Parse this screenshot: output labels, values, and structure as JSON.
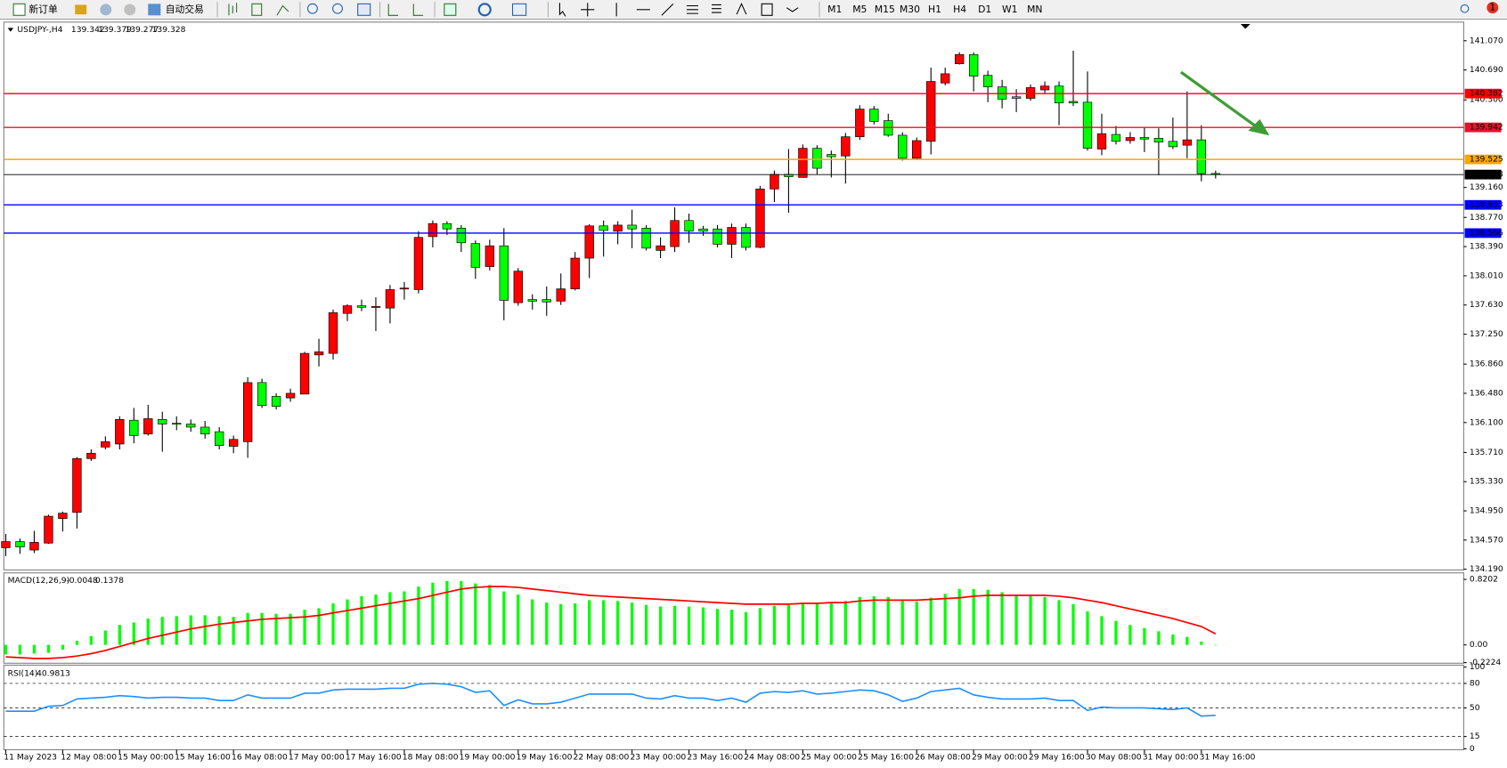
{
  "toolbar": {
    "buttons": [
      "新订单",
      "自动交易"
    ],
    "timeframes": [
      "M1",
      "M5",
      "M15",
      "M30",
      "H1",
      "H4",
      "D1",
      "W1",
      "MN"
    ],
    "notifications": 1
  },
  "chart_data": [
    {
      "type": "candlestick",
      "symbol": "USDJPY-,H4",
      "categories": [
        "11 May 2023",
        null,
        null,
        null,
        "12 May 08:00",
        null,
        null,
        null,
        "15 May 00:00",
        null,
        null,
        null,
        "15 May 16:00",
        null,
        null,
        null,
        "16 May 08:00",
        null,
        null,
        null,
        "17 May 00:00",
        null,
        null,
        null,
        "17 May 16:00",
        null,
        null,
        null,
        "18 May 08:00",
        null,
        null,
        null,
        "19 May 00:00",
        null,
        null,
        null,
        "19 May 16:00",
        null,
        null,
        null,
        "22 May 08:00",
        null,
        null,
        null,
        "23 May 00:00",
        null,
        null,
        null,
        "23 May 16:00",
        null,
        null,
        null,
        "24 May 08:00",
        null,
        null,
        null,
        "25 May 00:00",
        null,
        null,
        null,
        "25 May 16:00",
        null,
        null,
        null,
        "26 May 08:00",
        null,
        null,
        null,
        "29 May 00:00",
        null,
        null,
        null,
        "29 May 16:00",
        null,
        null,
        null,
        "30 May 08:00",
        null,
        null,
        null,
        "31 May 00:00",
        null,
        null,
        null,
        "31 May 16:00",
        null
      ],
      "open": [
        134.47,
        134.55,
        134.44,
        134.53,
        134.85,
        134.93,
        135.63,
        135.78,
        135.82,
        136.13,
        135.95,
        136.14,
        136.09,
        136.08,
        136.04,
        135.98,
        135.79,
        135.85,
        136.62,
        136.44,
        136.42,
        136.47,
        136.98,
        137.0,
        137.52,
        137.62,
        137.6,
        137.59,
        137.84,
        137.83,
        138.52,
        138.69,
        138.63,
        138.43,
        138.13,
        138.4,
        137.66,
        137.7,
        137.7,
        137.68,
        137.84,
        138.24,
        138.66,
        138.59,
        138.67,
        138.63,
        138.34,
        138.39,
        138.73,
        138.62,
        138.62,
        138.42,
        138.64,
        138.38,
        139.14,
        139.33,
        139.29,
        139.67,
        139.59,
        139.57,
        139.82,
        140.18,
        140.03,
        139.84,
        139.54,
        139.76,
        140.52,
        140.77,
        140.89,
        140.62,
        140.47,
        140.34,
        140.32,
        140.43,
        140.48,
        140.28,
        140.27,
        139.66,
        139.85,
        139.77,
        139.81,
        139.8,
        139.76,
        139.71,
        139.78,
        139.342
      ],
      "high": [
        134.65,
        134.59,
        134.69,
        134.9,
        134.94,
        135.65,
        135.75,
        135.92,
        136.18,
        136.29,
        136.33,
        136.24,
        136.18,
        136.14,
        136.12,
        136.04,
        135.93,
        136.69,
        136.67,
        136.48,
        136.54,
        137.02,
        137.19,
        137.57,
        137.64,
        137.7,
        137.73,
        137.89,
        137.93,
        138.59,
        138.73,
        138.72,
        138.67,
        138.47,
        138.48,
        138.63,
        138.11,
        137.77,
        137.87,
        138.04,
        138.32,
        138.68,
        138.73,
        138.72,
        138.87,
        138.67,
        138.51,
        138.9,
        138.82,
        138.66,
        138.67,
        138.69,
        138.69,
        139.18,
        139.38,
        139.66,
        139.72,
        139.71,
        139.64,
        139.87,
        140.23,
        140.22,
        140.12,
        139.88,
        139.81,
        140.72,
        140.72,
        140.92,
        140.92,
        140.68,
        140.56,
        140.44,
        140.5,
        140.54,
        140.54,
        140.94,
        140.67,
        140.12,
        139.96,
        139.88,
        139.94,
        139.93,
        140.07,
        140.41,
        139.97,
        139.379
      ],
      "low": [
        134.36,
        134.39,
        134.4,
        134.52,
        134.68,
        134.72,
        135.6,
        135.75,
        135.75,
        135.83,
        135.93,
        135.72,
        136.0,
        135.98,
        135.89,
        135.75,
        135.7,
        135.64,
        136.29,
        136.27,
        136.37,
        136.47,
        136.83,
        136.92,
        137.42,
        137.55,
        137.29,
        137.39,
        137.7,
        137.78,
        138.38,
        138.54,
        138.32,
        137.97,
        138.08,
        137.43,
        137.62,
        137.57,
        137.49,
        137.63,
        137.82,
        137.98,
        138.26,
        138.42,
        138.37,
        138.34,
        138.24,
        138.32,
        138.44,
        138.53,
        138.38,
        138.24,
        138.34,
        138.37,
        138.97,
        138.83,
        139.29,
        139.33,
        139.29,
        139.21,
        139.78,
        139.98,
        139.82,
        139.51,
        139.52,
        139.59,
        140.49,
        140.76,
        140.41,
        140.27,
        140.19,
        140.14,
        140.29,
        140.38,
        139.97,
        140.22,
        139.64,
        139.58,
        139.72,
        139.73,
        139.62,
        139.32,
        139.66,
        139.54,
        139.24,
        139.277
      ],
      "close": [
        134.55,
        134.48,
        134.54,
        134.88,
        134.92,
        135.63,
        135.7,
        135.85,
        136.14,
        135.93,
        136.15,
        136.08,
        136.08,
        136.04,
        135.95,
        135.8,
        135.88,
        136.62,
        136.32,
        136.31,
        136.48,
        137.0,
        137.02,
        137.53,
        137.62,
        137.6,
        137.61,
        137.83,
        137.85,
        138.51,
        138.69,
        138.62,
        138.44,
        138.12,
        138.4,
        137.69,
        138.07,
        137.68,
        137.67,
        137.84,
        138.24,
        138.66,
        138.6,
        138.67,
        138.62,
        138.37,
        138.4,
        138.73,
        138.59,
        138.59,
        138.42,
        138.64,
        138.38,
        139.14,
        139.33,
        139.3,
        139.67,
        139.41,
        139.56,
        139.82,
        140.18,
        140.02,
        139.84,
        139.54,
        139.77,
        140.54,
        140.64,
        140.89,
        140.61,
        140.47,
        140.31,
        140.32,
        140.46,
        140.48,
        140.26,
        140.26,
        139.67,
        139.86,
        139.76,
        139.81,
        139.79,
        139.75,
        139.69,
        139.78,
        139.34,
        139.328
      ],
      "up_color": "#ff0000",
      "down_color": "#00ff00",
      "ylim": [
        134.18,
        141.3
      ],
      "yticks": [
        {
          "value": 141.07,
          "label": "141.070"
        },
        {
          "value": 140.69,
          "label": "140.690"
        },
        {
          "value": 140.3,
          "label": "140.300"
        },
        {
          "value": 139.16,
          "label": "139.160"
        },
        {
          "value": 138.77,
          "label": "138.770"
        },
        {
          "value": 138.39,
          "label": "138.390"
        },
        {
          "value": 138.01,
          "label": "138.010"
        },
        {
          "value": 137.63,
          "label": "137.630"
        },
        {
          "value": 137.25,
          "label": "137.250"
        },
        {
          "value": 136.86,
          "label": "136.860"
        },
        {
          "value": 136.48,
          "label": "136.480"
        },
        {
          "value": 136.1,
          "label": "136.100"
        },
        {
          "value": 135.71,
          "label": "135.710"
        },
        {
          "value": 135.33,
          "label": "135.330"
        },
        {
          "value": 134.95,
          "label": "134.950"
        },
        {
          "value": 134.57,
          "label": "134.570"
        },
        {
          "value": 134.19,
          "label": "134.190"
        }
      ],
      "levels": [
        {
          "value": 140.382,
          "color": "#ff0000"
        },
        {
          "value": 139.942,
          "color": "#e8112d"
        },
        {
          "value": 139.525,
          "color": "#ffa500"
        },
        {
          "value": 138.933,
          "color": "#0000ff"
        },
        {
          "value": 138.566,
          "color": "#0000ff"
        }
      ],
      "bid_color": "#000000"
    },
    {
      "type": "macd",
      "label": "MACD(12,26,9)",
      "histogram": {
        "color": "#00ff00",
        "values": [
          -0.12,
          -0.12,
          -0.11,
          -0.1,
          -0.06,
          0.05,
          0.11,
          0.18,
          0.25,
          0.28,
          0.33,
          0.35,
          0.36,
          0.37,
          0.37,
          0.36,
          0.35,
          0.4,
          0.4,
          0.39,
          0.39,
          0.44,
          0.46,
          0.52,
          0.57,
          0.61,
          0.63,
          0.66,
          0.67,
          0.73,
          0.78,
          0.8,
          0.8,
          0.77,
          0.75,
          0.67,
          0.63,
          0.57,
          0.53,
          0.51,
          0.52,
          0.56,
          0.56,
          0.55,
          0.53,
          0.5,
          0.48,
          0.49,
          0.48,
          0.47,
          0.45,
          0.44,
          0.41,
          0.46,
          0.49,
          0.5,
          0.53,
          0.53,
          0.53,
          0.55,
          0.6,
          0.61,
          0.6,
          0.56,
          0.54,
          0.59,
          0.64,
          0.7,
          0.7,
          0.69,
          0.66,
          0.63,
          0.62,
          0.6,
          0.56,
          0.51,
          0.42,
          0.36,
          0.3,
          0.25,
          0.21,
          0.17,
          0.13,
          0.1,
          0.04,
          -0.0048
        ]
      },
      "signal": {
        "color": "#ff0000",
        "values": [
          -0.15,
          -0.16,
          -0.17,
          -0.17,
          -0.16,
          -0.14,
          -0.11,
          -0.07,
          -0.02,
          0.03,
          0.08,
          0.12,
          0.16,
          0.2,
          0.23,
          0.26,
          0.28,
          0.3,
          0.32,
          0.33,
          0.34,
          0.35,
          0.37,
          0.4,
          0.43,
          0.46,
          0.49,
          0.52,
          0.55,
          0.58,
          0.62,
          0.66,
          0.7,
          0.72,
          0.73,
          0.73,
          0.72,
          0.7,
          0.68,
          0.66,
          0.64,
          0.62,
          0.61,
          0.6,
          0.59,
          0.58,
          0.57,
          0.56,
          0.55,
          0.54,
          0.53,
          0.52,
          0.51,
          0.51,
          0.51,
          0.51,
          0.52,
          0.52,
          0.53,
          0.53,
          0.55,
          0.56,
          0.56,
          0.56,
          0.56,
          0.57,
          0.58,
          0.59,
          0.61,
          0.62,
          0.62,
          0.62,
          0.62,
          0.62,
          0.61,
          0.59,
          0.56,
          0.53,
          0.49,
          0.45,
          0.41,
          0.37,
          0.33,
          0.28,
          0.23,
          0.1378
        ]
      },
      "ylim": [
        -0.23,
        0.89
      ],
      "yticks": [
        0.8202,
        {
          "value": 0,
          "label": "0.00"
        },
        -0.2224
      ]
    },
    {
      "type": "line",
      "label": "RSI(14)",
      "color": "#1e90ff",
      "values": [
        46,
        46,
        46,
        52,
        53,
        61,
        62,
        63,
        65,
        64,
        62,
        63,
        63,
        62,
        62,
        59,
        59,
        66,
        62,
        62,
        62,
        68,
        68,
        72,
        73,
        73,
        73,
        74,
        74,
        79,
        80,
        79,
        76,
        69,
        71,
        53,
        60,
        55,
        55,
        57,
        62,
        67,
        67,
        67,
        67,
        62,
        61,
        65,
        62,
        62,
        59,
        62,
        57,
        68,
        70,
        69,
        71,
        67,
        68,
        70,
        72,
        71,
        66,
        58,
        62,
        70,
        72,
        74,
        66,
        63,
        61,
        61,
        61,
        62,
        59,
        59,
        47,
        51,
        50,
        50,
        50,
        49,
        48,
        50,
        40,
        40.9813
      ],
      "ylim": [
        0,
        100
      ],
      "yticks": [
        100,
        80,
        50,
        15,
        0
      ]
    }
  ]
}
